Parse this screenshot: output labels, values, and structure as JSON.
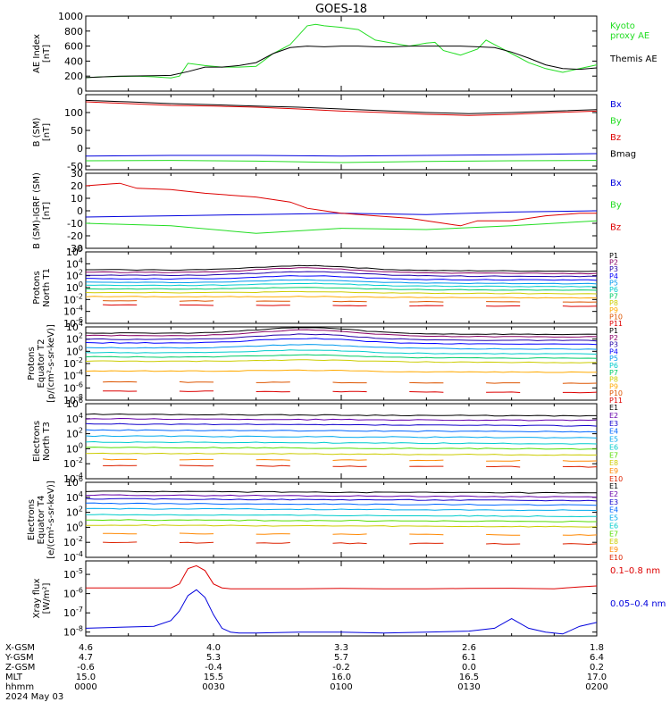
{
  "title": "GOES-18",
  "colors": {
    "black": "#000000",
    "red": "#dd0000",
    "green": "#22dd22",
    "blue": "#0000dd",
    "P": [
      "#000000",
      "#880066",
      "#2200aa",
      "#0000ff",
      "#0099ee",
      "#00cccc",
      "#00cc66",
      "#cccc00",
      "#ffaa00",
      "#dd5500",
      "#dd0000"
    ],
    "E": [
      "#000000",
      "#6600aa",
      "#1100cc",
      "#0066ff",
      "#00aaee",
      "#00cccc",
      "#55dd00",
      "#cccc00",
      "#ff8800",
      "#dd2200"
    ]
  },
  "chart_data": [
    {
      "type": "line",
      "panel": "ae",
      "ylabel": "AE Index\n[nT]",
      "ylim": [
        0,
        1000
      ],
      "yticks": [
        "0",
        "200",
        "400",
        "600",
        "800",
        "1000"
      ],
      "series": [
        {
          "name": "Kyoto\nproxy AE",
          "color": "green",
          "x": [
            0,
            2,
            4,
            6,
            8,
            10,
            11,
            12,
            14,
            16,
            18,
            20,
            22,
            23,
            24,
            26,
            27,
            28,
            30,
            32,
            34,
            36,
            38,
            40,
            41,
            42,
            44,
            46,
            47,
            48,
            50,
            52,
            54,
            56,
            58,
            60
          ],
          "y": [
            180,
            190,
            195,
            200,
            190,
            175,
            200,
            370,
            340,
            320,
            320,
            330,
            500,
            560,
            620,
            870,
            890,
            870,
            850,
            820,
            680,
            640,
            600,
            640,
            650,
            540,
            480,
            560,
            680,
            620,
            500,
            380,
            300,
            250,
            300,
            350
          ]
        },
        {
          "name": "Themis AE",
          "color": "black",
          "x": [
            0,
            4,
            8,
            10,
            12,
            14,
            16,
            18,
            20,
            22,
            24,
            26,
            28,
            30,
            32,
            34,
            36,
            38,
            40,
            42,
            44,
            46,
            48,
            50,
            52,
            54,
            56,
            58,
            60
          ],
          "y": [
            180,
            200,
            205,
            210,
            260,
            320,
            320,
            340,
            380,
            500,
            580,
            600,
            590,
            600,
            600,
            590,
            590,
            600,
            600,
            600,
            600,
            590,
            580,
            520,
            440,
            350,
            300,
            290,
            310
          ]
        }
      ]
    },
    {
      "type": "line",
      "panel": "bsm",
      "ylabel": "B (SM)\n[nT]",
      "ylim": [
        -60,
        150
      ],
      "yticks": [
        "-50",
        "0",
        "50",
        "100"
      ],
      "series": [
        {
          "name": "Bx",
          "color": "blue",
          "x": [
            0,
            10,
            20,
            30,
            40,
            50,
            60
          ],
          "y": [
            -22,
            -20,
            -20,
            -22,
            -20,
            -18,
            -15
          ]
        },
        {
          "name": "By",
          "color": "green",
          "x": [
            0,
            10,
            20,
            30,
            40,
            50,
            60
          ],
          "y": [
            -35,
            -34,
            -36,
            -40,
            -37,
            -35,
            -34
          ]
        },
        {
          "name": "Bz",
          "color": "red",
          "x": [
            0,
            5,
            10,
            15,
            20,
            25,
            30,
            35,
            40,
            45,
            50,
            55,
            60
          ],
          "y": [
            130,
            125,
            120,
            118,
            115,
            110,
            104,
            100,
            95,
            92,
            95,
            100,
            104
          ]
        },
        {
          "name": "Bmag",
          "color": "black",
          "x": [
            0,
            5,
            10,
            15,
            20,
            25,
            30,
            35,
            40,
            45,
            50,
            55,
            60
          ],
          "y": [
            134,
            130,
            125,
            122,
            118,
            115,
            110,
            105,
            100,
            97,
            100,
            104,
            108
          ]
        }
      ]
    },
    {
      "type": "line",
      "panel": "bigrf",
      "ylabel": "B (SM)-IGRF (SM)\n[nT]",
      "ylim": [
        -30,
        30
      ],
      "yticks": [
        "-30",
        "-20",
        "-10",
        "0",
        "10",
        "20",
        "30"
      ],
      "series": [
        {
          "name": "Bx",
          "color": "blue",
          "x": [
            0,
            10,
            20,
            30,
            40,
            50,
            60
          ],
          "y": [
            -5,
            -4,
            -3,
            -2,
            -3,
            -1,
            0
          ]
        },
        {
          "name": "By",
          "color": "green",
          "x": [
            0,
            10,
            20,
            30,
            40,
            50,
            60
          ],
          "y": [
            -10,
            -12,
            -18,
            -14,
            -15,
            -12,
            -8
          ]
        },
        {
          "name": "Bz",
          "color": "red",
          "x": [
            0,
            4,
            6,
            10,
            14,
            18,
            20,
            24,
            26,
            28,
            30,
            34,
            38,
            42,
            44,
            46,
            50,
            54,
            58,
            60
          ],
          "y": [
            20,
            22,
            18,
            17,
            14,
            12,
            11,
            7,
            2,
            0,
            -2,
            -4,
            -6,
            -10,
            -12,
            -8,
            -8,
            -4,
            -2,
            -2
          ]
        }
      ]
    },
    {
      "type": "line",
      "panel": "protons-t1",
      "log": true,
      "ylabel": "Protons\nNorth T1",
      "ylim": [
        -6,
        6
      ],
      "yticks": [
        "10^-6",
        "10^-4",
        "10^-2",
        "10^0",
        "10^2",
        "10^4",
        "10^6"
      ],
      "channels": [
        "P1",
        "P2",
        "P3",
        "P4",
        "P5",
        "P6",
        "P7",
        "P8",
        "P9",
        "P10",
        "P11"
      ],
      "levels": [
        3.0,
        2.6,
        2.1,
        1.5,
        0.9,
        0.4,
        -0.2,
        -0.8,
        -1.5,
        -2.2,
        -2.9
      ],
      "bump": [
        0.8,
        0.8,
        0.7,
        0.6,
        0.5,
        0.4,
        0.3,
        0.2,
        0.1,
        0,
        0
      ]
    },
    {
      "type": "line",
      "panel": "protons-t2",
      "log": true,
      "ylabel": "Protons\nEquator T2\n[p/(cm²-s-sr-keV)]",
      "ylim": [
        -8,
        4
      ],
      "yticks": [
        "10^-8",
        "10^-6",
        "10^-4",
        "10^-2",
        "10^0",
        "10^2",
        "10^4"
      ],
      "channels": [
        "P1",
        "P2",
        "P3",
        "P4",
        "P5",
        "P6",
        "P7",
        "P8",
        "P9",
        "P10",
        "P11"
      ],
      "levels": [
        3.0,
        2.6,
        2.0,
        1.4,
        0.6,
        -0.2,
        -0.9,
        -1.6,
        -3.2,
        -5.0,
        -6.5
      ],
      "bump": [
        1.0,
        1.0,
        0.9,
        0.8,
        0.6,
        0.5,
        0.4,
        0.3,
        0.2,
        0,
        0
      ]
    },
    {
      "type": "line",
      "panel": "electrons-t3",
      "log": true,
      "ylabel": "Electrons\nNorth T3",
      "ylim": [
        -4,
        6
      ],
      "yticks": [
        "10^-4",
        "10^-2",
        "10^0",
        "10^2",
        "10^4",
        "10^6"
      ],
      "channels": [
        "E1",
        "E2",
        "E3",
        "E4",
        "E5",
        "E6",
        "E7",
        "E8",
        "E9",
        "E10"
      ],
      "levels": [
        4.6,
        4.0,
        3.3,
        2.5,
        1.7,
        0.9,
        0.2,
        -0.6,
        -1.4,
        -2.2
      ],
      "bump": [
        0,
        0,
        0,
        0,
        0,
        0,
        0,
        0,
        0,
        0
      ]
    },
    {
      "type": "line",
      "panel": "electrons-t4",
      "log": true,
      "ylabel": "Electrons\nEquator T4\n[e/(cm²-s-sr-keV)]",
      "ylim": [
        -4,
        6
      ],
      "yticks": [
        "10^-4",
        "10^-2",
        "10^0",
        "10^2",
        "10^4",
        "10^6"
      ],
      "channels": [
        "E1",
        "E2",
        "E3",
        "E4",
        "E5",
        "E6",
        "E7",
        "E8",
        "E9",
        "E10"
      ],
      "levels": [
        4.8,
        4.3,
        3.8,
        3.2,
        2.5,
        1.7,
        1.0,
        0.3,
        -0.8,
        -2.0
      ],
      "bump": [
        0,
        0,
        0,
        0,
        0,
        0,
        0,
        0,
        0,
        0
      ]
    },
    {
      "type": "line",
      "panel": "xray",
      "log": true,
      "ylabel": "Xray flux\n[W/m²]",
      "ylim": [
        -8.2,
        -4.3
      ],
      "yticks": [
        "10^-8",
        "10^-7",
        "10^-6",
        "10^-5"
      ],
      "series": [
        {
          "name": "0.1–0.8 nm",
          "color": "red",
          "x": [
            0,
            6,
            8,
            10,
            11,
            12,
            13,
            14,
            15,
            16,
            17,
            18,
            20,
            25,
            30,
            35,
            40,
            45,
            50,
            55,
            58,
            60
          ],
          "y": [
            -5.7,
            -5.7,
            -5.7,
            -5.7,
            -5.5,
            -4.7,
            -4.55,
            -4.8,
            -5.5,
            -5.7,
            -5.75,
            -5.75,
            -5.75,
            -5.75,
            -5.73,
            -5.75,
            -5.75,
            -5.73,
            -5.72,
            -5.75,
            -5.65,
            -5.6
          ]
        },
        {
          "name": "0.05–0.4 nm",
          "color": "blue",
          "x": [
            0,
            4,
            8,
            10,
            11,
            12,
            13,
            14,
            15,
            16,
            17,
            18,
            20,
            25,
            30,
            35,
            40,
            45,
            48,
            50,
            52,
            54,
            56,
            58,
            60
          ],
          "y": [
            -7.8,
            -7.75,
            -7.7,
            -7.4,
            -6.9,
            -6.1,
            -5.8,
            -6.2,
            -7.1,
            -7.8,
            -8.0,
            -8.05,
            -8.05,
            -8.0,
            -8.0,
            -8.05,
            -8.0,
            -7.95,
            -7.8,
            -7.3,
            -7.8,
            -8.0,
            -8.1,
            -7.7,
            -7.5
          ]
        }
      ]
    }
  ],
  "bottom_axis": {
    "row_labels": [
      "X-GSM",
      "Y-GSM",
      "Z-GSM",
      "MLT",
      "hhmm",
      "2024 May 03"
    ],
    "columns": [
      [
        "4.6",
        "4.7",
        "-0.6",
        "15.0",
        "0000"
      ],
      [
        "4.0",
        "5.3",
        "-0.4",
        "15.5",
        "0030"
      ],
      [
        "3.3",
        "5.7",
        "-0.2",
        "16.0",
        "0100"
      ],
      [
        "2.6",
        "6.1",
        "0.0",
        "16.5",
        "0130"
      ],
      [
        "1.8",
        "6.4",
        "0.2",
        "17.0",
        "0200"
      ]
    ]
  }
}
